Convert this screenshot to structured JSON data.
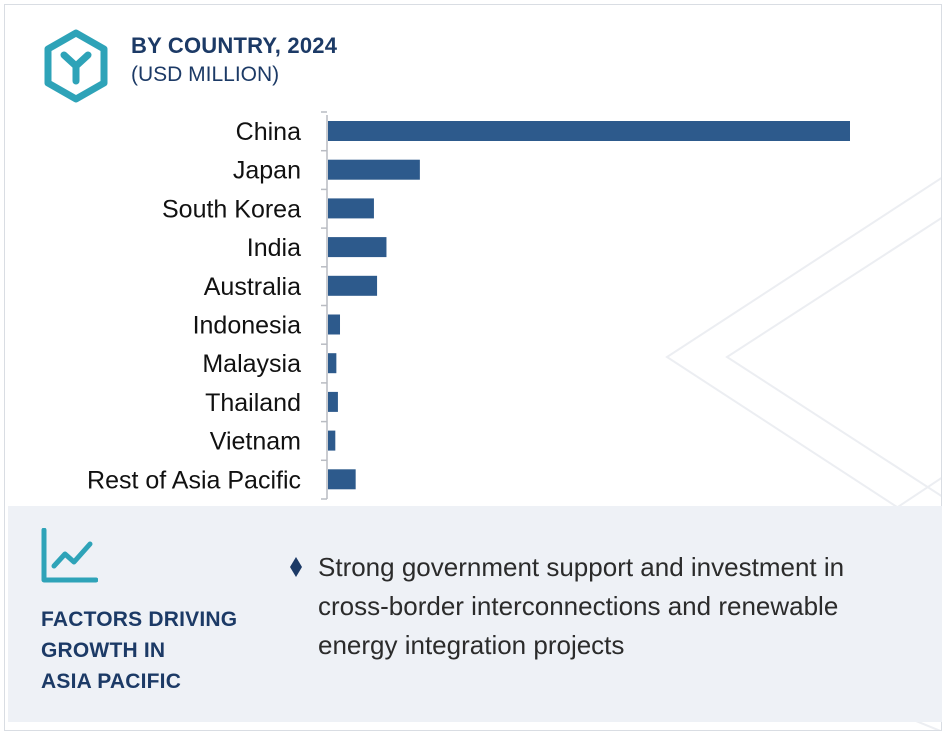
{
  "header": {
    "title": "BY COUNTRY, 2024",
    "subtitle": "(USD MILLION)",
    "logo_icon": "hexagon-y-logo-icon"
  },
  "colors": {
    "bar": "#2d5a8c",
    "title": "#1c3a66",
    "accent": "#2ea3b8",
    "panel": "#eef1f6"
  },
  "chart_data": {
    "type": "bar",
    "orientation": "horizontal",
    "title": "BY COUNTRY, 2024",
    "subtitle": "(USD MILLION)",
    "categories": [
      "China",
      "Japan",
      "South Korea",
      "India",
      "Australia",
      "Indonesia",
      "Malaysia",
      "Thailand",
      "Vietnam",
      "Rest of Asia Pacific"
    ],
    "values": [
      100,
      17.6,
      8.8,
      11.2,
      9.4,
      2.3,
      1.6,
      1.9,
      1.4,
      5.3
    ],
    "xlim": [
      0,
      100
    ],
    "grid": false,
    "legend": "none",
    "value_axis_shown": false
  },
  "factors": {
    "icon": "trend-chart-icon",
    "title_lines": [
      "FACTORS DRIVING",
      "GROWTH IN",
      "ASIA PACIFIC"
    ],
    "bullet_icon": "diamond-bullet-icon",
    "bullet_text": "Strong government support and investment in cross-border interconnections and renewable energy integration projects"
  }
}
